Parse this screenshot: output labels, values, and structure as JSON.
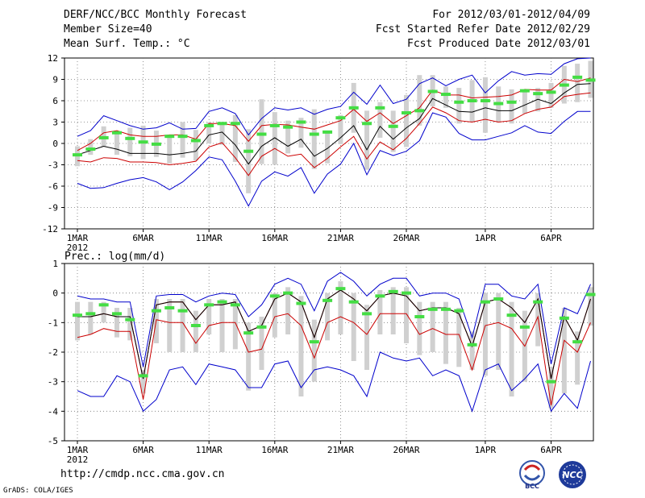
{
  "header": {
    "title": "DERF/NCC/BCC Monthly Forecast",
    "member_size": "Member Size=40",
    "variable": "Mean Surf. Temp.: °C",
    "forecast_period": "For 2012/03/01-2012/04/09",
    "refer_date": "Fcst Started Refer Date 2012/02/29",
    "produced_date": "Fcst Produced Date 2012/03/01"
  },
  "footer": {
    "url": "http://cmdp.ncc.cma.gov.cn",
    "grads": "GrADS: COLA/IGES",
    "logo_left_text": "BCC",
    "logo_right_text": "NCC"
  },
  "colors": {
    "envelope": "#0000cc",
    "low": "#cc0000",
    "mean": "#000000",
    "box": "#d0d0d0",
    "marker": "#44dd44"
  },
  "chart_data": [
    {
      "type": "line",
      "title": "Mean Surf. Temp.: °C",
      "ylim": [
        -12,
        12
      ],
      "yticks": [
        12,
        9,
        6,
        3,
        0,
        -3,
        -6,
        -9,
        -12
      ],
      "xticks": [
        "1MAR",
        "6MAR",
        "11MAR",
        "16MAR",
        "21MAR",
        "26MAR",
        "1APR",
        "6APR"
      ],
      "xtick_days": [
        1,
        6,
        11,
        16,
        21,
        26,
        32,
        37
      ],
      "xlabel_year": "2012",
      "days": [
        1,
        2,
        3,
        4,
        5,
        6,
        7,
        8,
        9,
        10,
        11,
        12,
        13,
        14,
        15,
        16,
        17,
        18,
        19,
        20,
        21,
        22,
        23,
        24,
        25,
        26,
        27,
        28,
        29,
        30,
        31,
        32,
        33,
        34,
        35,
        36,
        37,
        38,
        39,
        40
      ],
      "series": [
        {
          "name": "max",
          "values": [
            1.0,
            1.8,
            3.9,
            3.2,
            2.5,
            2.0,
            2.2,
            2.9,
            2.0,
            2.1,
            4.5,
            5.0,
            4.2,
            1.2,
            3.5,
            5.0,
            4.7,
            5.0,
            4.1,
            4.8,
            5.2,
            7.2,
            5.5,
            8.2,
            5.6,
            6.2,
            8.4,
            9.2,
            8.1,
            9.0,
            9.6,
            7.1,
            8.8,
            10.1,
            9.6,
            9.8,
            9.7,
            11.2,
            11.9,
            12.0
          ]
        },
        {
          "name": "upper",
          "values": [
            -1.0,
            0.0,
            1.5,
            1.8,
            1.2,
            1.0,
            1.0,
            1.2,
            1.2,
            0.6,
            2.8,
            2.8,
            2.5,
            0.3,
            2.5,
            2.7,
            2.6,
            2.3,
            2.0,
            2.6,
            3.2,
            4.8,
            3.1,
            4.3,
            2.8,
            3.9,
            5.0,
            7.5,
            6.8,
            6.8,
            6.4,
            6.5,
            6.6,
            6.8,
            7.6,
            7.5,
            7.5,
            9.0,
            8.7,
            9.2
          ]
        },
        {
          "name": "mean",
          "values": [
            -1.6,
            -1.0,
            -0.4,
            -0.8,
            -1.4,
            -1.4,
            -1.4,
            -1.6,
            -1.4,
            -1.1,
            1.2,
            1.6,
            -0.2,
            -2.9,
            -0.4,
            0.8,
            -0.4,
            0.6,
            -1.8,
            -0.7,
            0.8,
            2.5,
            -0.9,
            2.4,
            0.6,
            2.2,
            3.5,
            6.3,
            5.4,
            4.5,
            4.4,
            5.0,
            4.6,
            4.6,
            5.4,
            6.2,
            5.6,
            7.1,
            8.3,
            8.4
          ]
        },
        {
          "name": "lower",
          "values": [
            -2.4,
            -2.6,
            -2.0,
            -2.1,
            -2.6,
            -2.6,
            -2.7,
            -3.0,
            -2.8,
            -2.5,
            -0.5,
            0.1,
            -2.0,
            -4.5,
            -1.8,
            -0.7,
            -1.8,
            -1.5,
            -3.4,
            -2.1,
            -0.5,
            1.0,
            -2.2,
            0.2,
            -0.9,
            0.7,
            2.8,
            5.1,
            4.3,
            3.2,
            3.0,
            3.4,
            3.0,
            3.2,
            4.2,
            4.8,
            5.1,
            6.6,
            6.9,
            7.1
          ]
        },
        {
          "name": "min",
          "values": [
            -5.6,
            -6.3,
            -6.2,
            -5.6,
            -5.1,
            -4.8,
            -5.4,
            -6.5,
            -5.4,
            -3.8,
            -1.9,
            -2.3,
            -5.3,
            -8.8,
            -5.3,
            -4.0,
            -4.6,
            -3.4,
            -7.0,
            -4.3,
            -2.9,
            0.0,
            -4.4,
            -1.0,
            -1.7,
            -1.1,
            0.4,
            4.3,
            3.7,
            1.4,
            0.5,
            0.5,
            1.0,
            1.5,
            2.5,
            1.6,
            1.4,
            3.1,
            4.5,
            4.5
          ]
        },
        {
          "name": "box_low",
          "values": [
            -3.2,
            -1.6,
            -0.4,
            -1.6,
            -1.8,
            -2.2,
            -1.9,
            -2.8,
            -2.0,
            -2.4,
            0.0,
            -0.2,
            -2.6,
            -7.0,
            -2.9,
            -3.0,
            -1.4,
            -0.6,
            -3.6,
            -2.8,
            -0.1,
            1.5,
            -3.7,
            0.8,
            -1.2,
            -0.5,
            2.5,
            5.2,
            5.0,
            2.8,
            3.0,
            1.5,
            3.0,
            2.8,
            4.2,
            4.5,
            5.0,
            5.6,
            5.8,
            6.4
          ]
        },
        {
          "name": "box_high",
          "values": [
            -0.4,
            0.6,
            2.4,
            1.6,
            2.2,
            2.5,
            1.8,
            1.2,
            3.0,
            1.9,
            3.0,
            3.0,
            4.0,
            2.0,
            6.2,
            4.4,
            3.2,
            3.6,
            4.8,
            1.5,
            4.0,
            8.5,
            4.6,
            5.8,
            4.6,
            6.8,
            9.6,
            9.6,
            8.0,
            7.8,
            8.9,
            9.3,
            8.0,
            7.6,
            7.2,
            7.8,
            8.5,
            10.9,
            11.2,
            11.6
          ]
        },
        {
          "name": "ensemble_marker",
          "values": [
            -1.6,
            -0.8,
            0.8,
            1.5,
            0.7,
            0.2,
            -0.1,
            1.0,
            1.0,
            0.4,
            2.5,
            2.8,
            2.8,
            -1.1,
            1.3,
            2.5,
            2.3,
            3.0,
            1.3,
            1.6,
            3.6,
            5.0,
            2.8,
            5.0,
            2.4,
            4.3,
            4.6,
            7.3,
            6.9,
            5.8,
            6.0,
            6.0,
            5.6,
            5.8,
            7.4,
            7.0,
            7.2,
            8.2,
            9.3,
            8.9
          ]
        }
      ]
    },
    {
      "type": "line",
      "title": "Prec.: log(mm/d)",
      "ylim": [
        -5,
        1
      ],
      "yticks": [
        1,
        0,
        -1,
        -2,
        -3,
        -4,
        -5
      ],
      "xticks": [
        "1MAR",
        "6MAR",
        "11MAR",
        "16MAR",
        "21MAR",
        "26MAR",
        "1APR",
        "6APR"
      ],
      "xtick_days": [
        1,
        6,
        11,
        16,
        21,
        26,
        32,
        37
      ],
      "xlabel_year": "2012",
      "days": [
        1,
        2,
        3,
        4,
        5,
        6,
        7,
        8,
        9,
        10,
        11,
        12,
        13,
        14,
        15,
        16,
        17,
        18,
        19,
        20,
        21,
        22,
        23,
        24,
        25,
        26,
        27,
        28,
        29,
        30,
        31,
        32,
        33,
        34,
        35,
        36,
        37,
        38,
        39,
        40
      ],
      "series": [
        {
          "name": "max",
          "values": [
            -0.1,
            -0.2,
            -0.2,
            -0.3,
            -0.3,
            -2.5,
            -0.1,
            -0.05,
            -0.05,
            -0.3,
            -0.1,
            0.0,
            -0.05,
            -0.8,
            -0.4,
            0.3,
            0.5,
            0.3,
            -0.6,
            0.4,
            0.7,
            0.4,
            -0.1,
            0.3,
            0.5,
            0.5,
            -0.1,
            0.0,
            0.0,
            -0.2,
            -1.5,
            0.3,
            0.3,
            -0.1,
            -0.2,
            0.3,
            -2.4,
            -0.5,
            -0.7,
            0.3
          ]
        },
        {
          "name": "upper",
          "values": [
            -0.8,
            -0.8,
            -0.7,
            -0.8,
            -0.8,
            -2.9,
            -0.4,
            -0.3,
            -0.3,
            -0.9,
            -0.4,
            -0.4,
            -0.3,
            -1.3,
            -1.1,
            -0.2,
            0.0,
            -0.3,
            -1.5,
            -0.2,
            0.1,
            -0.2,
            -0.6,
            -0.1,
            0.0,
            -0.1,
            -0.6,
            -0.5,
            -0.5,
            -0.7,
            -1.8,
            -0.3,
            -0.2,
            -0.5,
            -1.0,
            -0.2,
            -2.9,
            -0.8,
            -1.6,
            -0.2
          ]
        },
        {
          "name": "mean",
          "values": [
            -0.8,
            -0.8,
            -0.7,
            -0.8,
            -0.8,
            -2.9,
            -0.4,
            -0.3,
            -0.3,
            -0.9,
            -0.4,
            -0.4,
            -0.3,
            -1.3,
            -1.1,
            -0.2,
            0.0,
            -0.3,
            -1.5,
            -0.2,
            0.1,
            -0.2,
            -0.6,
            -0.1,
            0.0,
            -0.1,
            -0.6,
            -0.5,
            -0.5,
            -0.7,
            -1.8,
            -0.3,
            -0.2,
            -0.5,
            -1.0,
            -0.2,
            -2.9,
            -0.8,
            -1.6,
            -0.2
          ]
        },
        {
          "name": "lower",
          "values": [
            -1.5,
            -1.4,
            -1.2,
            -1.3,
            -1.3,
            -3.6,
            -0.9,
            -1.0,
            -1.0,
            -1.7,
            -1.1,
            -1.0,
            -1.0,
            -2.0,
            -1.9,
            -0.8,
            -0.7,
            -1.1,
            -2.2,
            -1.0,
            -0.8,
            -1.0,
            -1.4,
            -0.7,
            -0.7,
            -0.7,
            -1.4,
            -1.2,
            -1.4,
            -1.4,
            -2.6,
            -1.1,
            -1.0,
            -1.2,
            -1.8,
            -0.8,
            -3.8,
            -1.6,
            -2.0,
            -1.0
          ]
        },
        {
          "name": "min",
          "values": [
            -3.3,
            -3.5,
            -3.5,
            -2.8,
            -3.0,
            -4.0,
            -3.6,
            -2.6,
            -2.5,
            -3.1,
            -2.4,
            -2.5,
            -2.6,
            -3.2,
            -3.2,
            -2.4,
            -2.3,
            -3.2,
            -2.6,
            -2.5,
            -2.6,
            -2.8,
            -3.5,
            -2.0,
            -2.2,
            -2.3,
            -2.2,
            -2.8,
            -2.6,
            -2.8,
            -4.0,
            -2.6,
            -2.4,
            -3.3,
            -2.9,
            -2.4,
            -4.0,
            -3.4,
            -3.9,
            -2.3
          ]
        },
        {
          "name": "box_low",
          "values": [
            -1.6,
            -1.4,
            -1.0,
            -1.5,
            -1.6,
            -3.4,
            -1.7,
            -2.0,
            -2.0,
            -2.0,
            -1.4,
            -2.0,
            -1.9,
            -3.3,
            -2.6,
            -1.5,
            -1.4,
            -3.5,
            -3.0,
            -1.6,
            -1.4,
            -2.3,
            -2.6,
            -1.4,
            -1.4,
            -1.7,
            -2.1,
            -2.0,
            -2.4,
            -2.5,
            -2.6,
            -2.8,
            -2.6,
            -3.5,
            -3.0,
            -1.8,
            -3.9,
            -3.4,
            -3.1,
            -1.1
          ]
        },
        {
          "name": "box_high",
          "values": [
            -0.3,
            -0.3,
            -0.3,
            -0.5,
            -0.5,
            -2.6,
            -0.2,
            -0.2,
            -0.2,
            -0.6,
            -0.2,
            -0.2,
            -0.2,
            -1.0,
            -0.8,
            0.0,
            0.2,
            -0.1,
            -0.9,
            0.0,
            0.4,
            0.0,
            -0.4,
            0.1,
            0.2,
            0.2,
            -0.3,
            -0.3,
            -0.3,
            -0.5,
            -1.3,
            0.0,
            0.0,
            -0.3,
            -0.6,
            0.0,
            -2.5,
            -0.5,
            -1.3,
            0.2
          ]
        },
        {
          "name": "ensemble_marker",
          "values": [
            -0.75,
            -0.7,
            -0.4,
            -0.7,
            -0.9,
            -2.8,
            -0.6,
            -0.5,
            -0.6,
            -1.1,
            -0.4,
            -0.3,
            -0.4,
            -1.35,
            -1.15,
            -0.1,
            0.0,
            -0.35,
            -1.65,
            -0.25,
            0.15,
            -0.3,
            -0.7,
            -0.1,
            0.05,
            0.0,
            -0.8,
            -0.55,
            -0.55,
            -0.6,
            -1.75,
            -0.3,
            -0.2,
            -0.75,
            -1.15,
            -0.3,
            -3.0,
            -0.85,
            -1.65,
            -0.05
          ]
        }
      ]
    }
  ]
}
